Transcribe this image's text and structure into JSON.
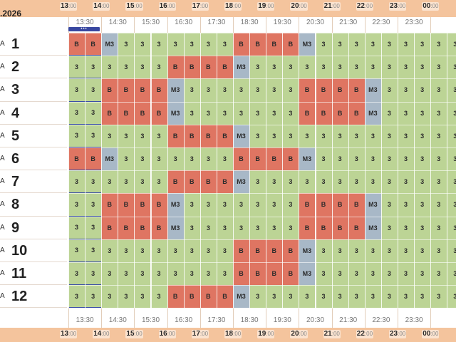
{
  "date": ".2026",
  "colors": {
    "s3": "#bcd495",
    "B": "#df7562",
    "M3": "#a8b8c7"
  },
  "hours": [
    {
      "h": "13",
      "m": ":00"
    },
    {
      "h": "14",
      "m": ":00"
    },
    {
      "h": "15",
      "m": ":00"
    },
    {
      "h": "16",
      "m": ":00"
    },
    {
      "h": "17",
      "m": ":00"
    },
    {
      "h": "18",
      "m": ":00"
    },
    {
      "h": "19",
      "m": ":00"
    },
    {
      "h": "20",
      "m": ":00"
    },
    {
      "h": "21",
      "m": ":00"
    },
    {
      "h": "22",
      "m": ":00"
    },
    {
      "h": "23",
      "m": ":00"
    },
    {
      "h": "00",
      "m": ":00"
    }
  ],
  "half_hours": [
    "13:30",
    "14:30",
    "15:30",
    "16:30",
    "17:30",
    "18:30",
    "19:30",
    "20:30",
    "21:30",
    "22:30",
    "23:30"
  ],
  "now_marker": "•••",
  "rows": [
    {
      "prefix": "A",
      "num": "1",
      "cells": [
        "B",
        "B",
        "M3",
        "3",
        "3",
        "3",
        "3",
        "3",
        "3",
        "3",
        "B",
        "B",
        "B",
        "B",
        "M3",
        "3",
        "3",
        "3",
        "3",
        "3",
        "3",
        "3",
        "3",
        "3"
      ]
    },
    {
      "prefix": "A",
      "num": "2",
      "cells": [
        "3",
        "3",
        "3",
        "3",
        "3",
        "3",
        "B",
        "B",
        "B",
        "B",
        "M3",
        "3",
        "3",
        "3",
        "3",
        "3",
        "3",
        "3",
        "3",
        "3",
        "3",
        "3",
        "3",
        "3"
      ]
    },
    {
      "prefix": "A",
      "num": "3",
      "cells": [
        "3",
        "3",
        "B",
        "B",
        "B",
        "B",
        "M3",
        "3",
        "3",
        "3",
        "3",
        "3",
        "3",
        "3",
        "B",
        "B",
        "B",
        "B",
        "M3",
        "3",
        "3",
        "3",
        "3",
        "3"
      ]
    },
    {
      "prefix": "A",
      "num": "4",
      "cells": [
        "3",
        "3",
        "B",
        "B",
        "B",
        "B",
        "M3",
        "3",
        "3",
        "3",
        "3",
        "3",
        "3",
        "3",
        "B",
        "B",
        "B",
        "B",
        "M3",
        "3",
        "3",
        "3",
        "3",
        "3"
      ]
    },
    {
      "prefix": "A",
      "num": "5",
      "cells": [
        "3",
        "3",
        "3",
        "3",
        "3",
        "3",
        "B",
        "B",
        "B",
        "B",
        "M3",
        "3",
        "3",
        "3",
        "3",
        "3",
        "3",
        "3",
        "3",
        "3",
        "3",
        "3",
        "3",
        "3"
      ]
    },
    {
      "prefix": "A",
      "num": "6",
      "cells": [
        "B",
        "B",
        "M3",
        "3",
        "3",
        "3",
        "3",
        "3",
        "3",
        "3",
        "B",
        "B",
        "B",
        "B",
        "M3",
        "3",
        "3",
        "3",
        "3",
        "3",
        "3",
        "3",
        "3",
        "3"
      ]
    },
    {
      "prefix": "A",
      "num": "7",
      "cells": [
        "3",
        "3",
        "3",
        "3",
        "3",
        "3",
        "B",
        "B",
        "B",
        "B",
        "M3",
        "3",
        "3",
        "3",
        "3",
        "3",
        "3",
        "3",
        "3",
        "3",
        "3",
        "3",
        "3",
        "3"
      ]
    },
    {
      "prefix": "A",
      "num": "8",
      "cells": [
        "3",
        "3",
        "B",
        "B",
        "B",
        "B",
        "M3",
        "3",
        "3",
        "3",
        "3",
        "3",
        "3",
        "3",
        "B",
        "B",
        "B",
        "B",
        "M3",
        "3",
        "3",
        "3",
        "3",
        "3"
      ]
    },
    {
      "prefix": "A",
      "num": "9",
      "cells": [
        "3",
        "3",
        "B",
        "B",
        "B",
        "B",
        "M3",
        "3",
        "3",
        "3",
        "3",
        "3",
        "3",
        "3",
        "B",
        "B",
        "B",
        "B",
        "M3",
        "3",
        "3",
        "3",
        "3",
        "3"
      ]
    },
    {
      "prefix": "A",
      "num": "10",
      "cells": [
        "3",
        "3",
        "3",
        "3",
        "3",
        "3",
        "3",
        "3",
        "3",
        "3",
        "B",
        "B",
        "B",
        "B",
        "M3",
        "3",
        "3",
        "3",
        "3",
        "3",
        "3",
        "3",
        "3",
        "3"
      ]
    },
    {
      "prefix": "A",
      "num": "11",
      "cells": [
        "3",
        "3",
        "3",
        "3",
        "3",
        "3",
        "3",
        "3",
        "3",
        "3",
        "B",
        "B",
        "B",
        "B",
        "M3",
        "3",
        "3",
        "3",
        "3",
        "3",
        "3",
        "3",
        "3",
        "3"
      ]
    },
    {
      "prefix": "A",
      "num": "12",
      "cells": [
        "3",
        "3",
        "3",
        "3",
        "3",
        "3",
        "B",
        "B",
        "B",
        "B",
        "M3",
        "3",
        "3",
        "3",
        "3",
        "3",
        "3",
        "3",
        "3",
        "3",
        "3",
        "3",
        "3",
        "3"
      ]
    }
  ]
}
